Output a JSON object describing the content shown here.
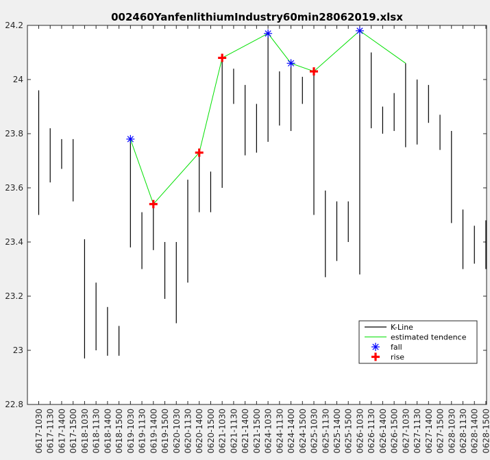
{
  "chart_data": {
    "type": "candlestick",
    "title": "002460YanfenlithiumIndustry60min28062019.xlsx",
    "xlabel": "",
    "ylabel": "",
    "ylim": [
      22.8,
      24.2
    ],
    "yticks": [
      22.8,
      23,
      23.2,
      23.4,
      23.6,
      23.8,
      24,
      24.2
    ],
    "ytick_labels": [
      "22.8",
      "23",
      "23.2",
      "23.4",
      "23.6",
      "23.8",
      "24",
      "24.2"
    ],
    "grid": false,
    "legend_position": "bottom-right",
    "categories": [
      "0617-1030",
      "0617-1130",
      "0617-1400",
      "0617-1500",
      "0618-1030",
      "0618-1130",
      "0618-1400",
      "0618-1500",
      "0619-1030",
      "0619-1130",
      "0619-1400",
      "0619-1500",
      "0620-1030",
      "0620-1130",
      "0620-1400",
      "0620-1500",
      "0621-1030",
      "0621-1130",
      "0621-1400",
      "0621-1500",
      "0624-1030",
      "0624-1130",
      "0624-1400",
      "0624-1500",
      "0625-1030",
      "0625-1130",
      "0625-1400",
      "0625-1500",
      "0626-1030",
      "0626-1130",
      "0626-1400",
      "0626-1500",
      "0627-1030",
      "0627-1130",
      "0627-1400",
      "0627-1500",
      "0628-1030",
      "0628-1130",
      "0628-1400",
      "0628-1500"
    ],
    "kline": [
      [
        23.5,
        23.96
      ],
      [
        23.62,
        23.82
      ],
      [
        23.67,
        23.78
      ],
      [
        23.55,
        23.78
      ],
      [
        22.97,
        23.41
      ],
      [
        23.0,
        23.25
      ],
      [
        22.98,
        23.16
      ],
      [
        22.98,
        23.09
      ],
      [
        23.38,
        23.78
      ],
      [
        23.3,
        23.51
      ],
      [
        23.37,
        23.55
      ],
      [
        23.19,
        23.4
      ],
      [
        23.1,
        23.4
      ],
      [
        23.25,
        23.63
      ],
      [
        23.51,
        23.74
      ],
      [
        23.51,
        23.66
      ],
      [
        23.6,
        24.08
      ],
      [
        23.91,
        24.04
      ],
      [
        23.72,
        23.98
      ],
      [
        23.73,
        23.91
      ],
      [
        23.77,
        24.18
      ],
      [
        23.83,
        24.03
      ],
      [
        23.81,
        24.07
      ],
      [
        23.91,
        24.01
      ],
      [
        23.5,
        24.03
      ],
      [
        23.27,
        23.59
      ],
      [
        23.33,
        23.55
      ],
      [
        23.4,
        23.55
      ],
      [
        23.28,
        24.18
      ],
      [
        23.82,
        24.1
      ],
      [
        23.8,
        23.9
      ],
      [
        23.81,
        23.95
      ],
      [
        23.75,
        24.06
      ],
      [
        23.76,
        24.0
      ],
      [
        23.84,
        23.98
      ],
      [
        23.74,
        23.87
      ],
      [
        23.47,
        23.81
      ],
      [
        23.3,
        23.52
      ],
      [
        23.32,
        23.46
      ],
      [
        23.3,
        23.48
      ]
    ],
    "series": [
      {
        "name": "K-Line",
        "color": "#000000",
        "kind": "vertical-range"
      },
      {
        "name": "estimated tendence",
        "color": "#00e000",
        "kind": "line",
        "points": [
          [
            8,
            23.78
          ],
          [
            10,
            23.54
          ],
          [
            14,
            23.73
          ],
          [
            16,
            24.08
          ],
          [
            20,
            24.17
          ],
          [
            22,
            24.06
          ],
          [
            24,
            24.03
          ],
          [
            28,
            24.18
          ],
          [
            32,
            24.06
          ]
        ]
      },
      {
        "name": "fall",
        "color": "#0000ff",
        "kind": "asterisk-marker",
        "points": [
          [
            8,
            23.78
          ],
          [
            20,
            24.17
          ],
          [
            22,
            24.06
          ],
          [
            28,
            24.18
          ]
        ]
      },
      {
        "name": "rise",
        "color": "#ff0000",
        "kind": "plus-marker",
        "points": [
          [
            10,
            23.54
          ],
          [
            14,
            23.73
          ],
          [
            16,
            24.08
          ],
          [
            24,
            24.03
          ]
        ]
      }
    ]
  }
}
